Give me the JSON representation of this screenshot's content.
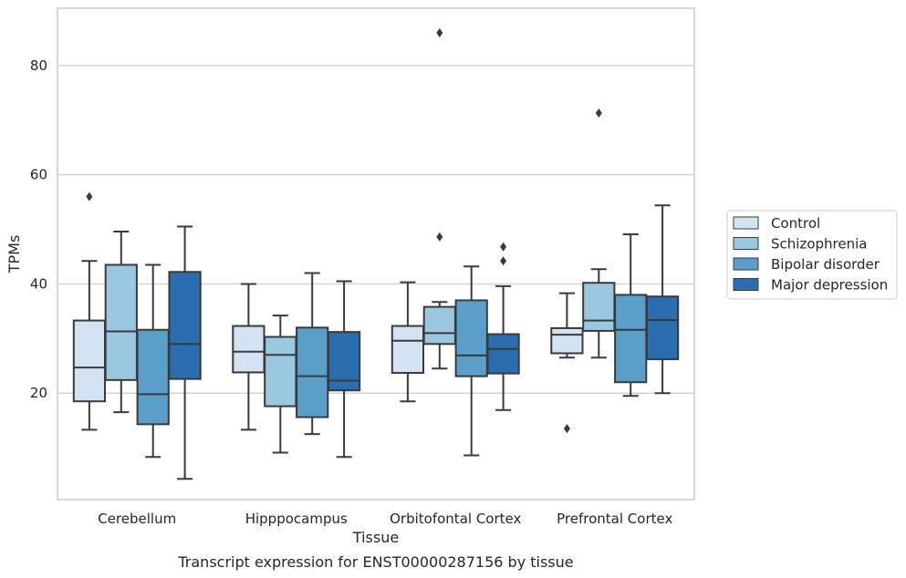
{
  "caption": "Transcript expression for ENST00000287156 by tissue",
  "chart_data": {
    "type": "box",
    "xlabel": "Tissue",
    "ylabel": "TPMs",
    "ylim": [
      0.5,
      90.5
    ],
    "yticks": [
      20,
      40,
      60,
      80
    ],
    "grid": true,
    "legend_position": "right",
    "categories": [
      "Cerebellum",
      "Hipppocampus",
      "Orbitofontal Cortex",
      "Prefrontal Cortex"
    ],
    "series": [
      {
        "name": "Control",
        "color": "#d3e3f3",
        "boxes": [
          {
            "whislo": 13.3,
            "q1": 18.5,
            "med": 24.7,
            "q3": 33.3,
            "whishi": 44.2,
            "fliers": [
              56.0
            ]
          },
          {
            "whislo": 13.3,
            "q1": 23.8,
            "med": 27.6,
            "q3": 32.3,
            "whishi": 40.0,
            "fliers": []
          },
          {
            "whislo": 18.5,
            "q1": 23.7,
            "med": 29.6,
            "q3": 32.3,
            "whishi": 40.3,
            "fliers": []
          },
          {
            "whislo": 26.5,
            "q1": 27.3,
            "med": 30.7,
            "q3": 31.9,
            "whishi": 38.3,
            "fliers": [
              13.5
            ]
          }
        ]
      },
      {
        "name": "Schizophrenia",
        "color": "#9ac8e0",
        "boxes": [
          {
            "whislo": 16.5,
            "q1": 22.4,
            "med": 31.3,
            "q3": 43.5,
            "whishi": 49.6,
            "fliers": []
          },
          {
            "whislo": 9.1,
            "q1": 17.6,
            "med": 27.0,
            "q3": 30.3,
            "whishi": 34.2,
            "fliers": []
          },
          {
            "whislo": 24.5,
            "q1": 29.0,
            "med": 31.0,
            "q3": 35.8,
            "whishi": 36.7,
            "fliers": [
              48.6,
              86.0
            ]
          },
          {
            "whislo": 26.5,
            "q1": 31.4,
            "med": 33.3,
            "q3": 40.2,
            "whishi": 42.7,
            "fliers": [
              71.3
            ]
          }
        ]
      },
      {
        "name": "Bipolar disorder",
        "color": "#5a9fca",
        "boxes": [
          {
            "whislo": 8.3,
            "q1": 14.3,
            "med": 19.8,
            "q3": 31.6,
            "whishi": 43.5,
            "fliers": []
          },
          {
            "whislo": 12.5,
            "q1": 15.6,
            "med": 23.1,
            "q3": 32.0,
            "whishi": 42.0,
            "fliers": []
          },
          {
            "whislo": 8.6,
            "q1": 23.1,
            "med": 26.9,
            "q3": 37.0,
            "whishi": 43.2,
            "fliers": []
          },
          {
            "whislo": 19.5,
            "q1": 22.0,
            "med": 31.6,
            "q3": 38.0,
            "whishi": 49.1,
            "fliers": []
          }
        ]
      },
      {
        "name": "Major depression",
        "color": "#2a6eb0",
        "boxes": [
          {
            "whislo": 4.3,
            "q1": 22.6,
            "med": 29.0,
            "q3": 42.2,
            "whishi": 50.5,
            "fliers": []
          },
          {
            "whislo": 8.3,
            "q1": 20.5,
            "med": 22.3,
            "q3": 31.2,
            "whishi": 40.5,
            "fliers": []
          },
          {
            "whislo": 16.9,
            "q1": 23.6,
            "med": 28.1,
            "q3": 30.8,
            "whishi": 39.6,
            "fliers": [
              44.2,
              46.8
            ]
          },
          {
            "whislo": 20.0,
            "q1": 26.2,
            "med": 33.4,
            "q3": 37.7,
            "whishi": 54.4,
            "fliers": []
          }
        ]
      }
    ]
  }
}
